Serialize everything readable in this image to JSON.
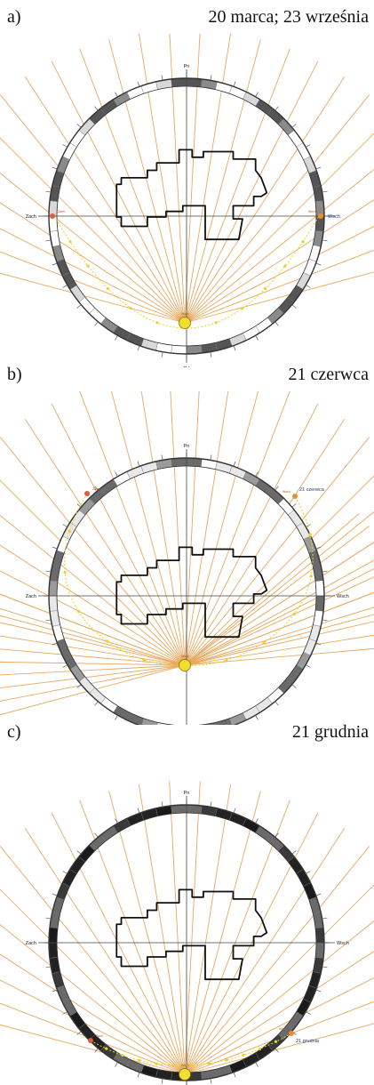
{
  "panels": [
    {
      "letter": "a)",
      "date": "20 marca; 23 września",
      "labels": {
        "north": "Pn",
        "south": "Pd",
        "west": "Zach",
        "east": "Wsch",
        "sunrise": "Wsch",
        "sunset": "Zach",
        "noon": "Wsch",
        "sunrise_note": ""
      },
      "ring_colors": [
        "#555555",
        "#d8d8d8",
        "#ffffff",
        "#8a8a8a"
      ],
      "sun_color": "#f2e030",
      "ray_color": "#e8a860",
      "path_color": "#f0d020"
    },
    {
      "letter": "b)",
      "date": "21 czerwca",
      "labels": {
        "north": "Pn",
        "south": "Pd",
        "west": "Zach",
        "east": "Wsch",
        "sunrise": "Wsch",
        "sunset": "Zach",
        "noon": "Wsch",
        "sunrise_note": "21 czerwca"
      },
      "ring_colors": [
        "#9a9a9a",
        "#e8e8e8",
        "#ffffff",
        "#6a6a6a"
      ],
      "sun_color": "#f2e030",
      "ray_color": "#e8a860",
      "path_color": "#f0d020"
    },
    {
      "letter": "c)",
      "date": "21 grudnia",
      "labels": {
        "north": "Pn",
        "south": "Pd",
        "west": "Zach",
        "east": "Wsch",
        "sunrise": "Wsch",
        "sunset": "Zach",
        "noon": "Wsch",
        "sunrise_note": "21 grudnia"
      },
      "ring_colors": [
        "#222222",
        "#3a3a3a",
        "#6a6a6a",
        "#1a1a1a"
      ],
      "sun_color": "#f2e030",
      "ray_color": "#e8a860",
      "path_color": "#f0d020"
    }
  ]
}
